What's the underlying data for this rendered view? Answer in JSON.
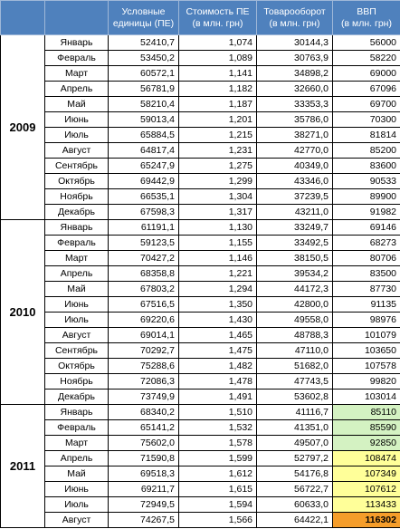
{
  "headers": {
    "units": [
      "Условные",
      "единицы (ПЕ)"
    ],
    "pe_cost": [
      "Стоимость ПЕ",
      "(в млн. грн)"
    ],
    "turnover": [
      "Товарооборот",
      "(в млн. грн)"
    ],
    "gdp": [
      "ВВП",
      "(в млн. грн)"
    ]
  },
  "years": [
    {
      "year": "2009",
      "rows": [
        {
          "month": "Январь",
          "ue": "52410,7",
          "pe": "1,074",
          "to": "30144,3",
          "gdp": "56000",
          "hl": ""
        },
        {
          "month": "Февраль",
          "ue": "53450,2",
          "pe": "1,089",
          "to": "30763,9",
          "gdp": "58220",
          "hl": ""
        },
        {
          "month": "Март",
          "ue": "60572,1",
          "pe": "1,141",
          "to": "34898,2",
          "gdp": "69000",
          "hl": ""
        },
        {
          "month": "Апрель",
          "ue": "56781,9",
          "pe": "1,182",
          "to": "32660,0",
          "gdp": "67096",
          "hl": ""
        },
        {
          "month": "Май",
          "ue": "58210,4",
          "pe": "1,187",
          "to": "33353,3",
          "gdp": "69700",
          "hl": ""
        },
        {
          "month": "Июнь",
          "ue": "59013,4",
          "pe": "1,201",
          "to": "35786,0",
          "gdp": "70300",
          "hl": ""
        },
        {
          "month": "Июль",
          "ue": "65884,5",
          "pe": "1,215",
          "to": "38271,0",
          "gdp": "81814",
          "hl": ""
        },
        {
          "month": "Август",
          "ue": "64817,4",
          "pe": "1,231",
          "to": "42770,0",
          "gdp": "85200",
          "hl": ""
        },
        {
          "month": "Сентябрь",
          "ue": "65247,9",
          "pe": "1,275",
          "to": "40349,0",
          "gdp": "83600",
          "hl": ""
        },
        {
          "month": "Октябрь",
          "ue": "69442,9",
          "pe": "1,299",
          "to": "43346,0",
          "gdp": "90533",
          "hl": ""
        },
        {
          "month": "Ноябрь",
          "ue": "66535,1",
          "pe": "1,304",
          "to": "37239,5",
          "gdp": "89900",
          "hl": ""
        },
        {
          "month": "Декабрь",
          "ue": "67598,3",
          "pe": "1,317",
          "to": "43211,0",
          "gdp": "91982",
          "hl": ""
        }
      ]
    },
    {
      "year": "2010",
      "rows": [
        {
          "month": "Январь",
          "ue": "61191,1",
          "pe": "1,130",
          "to": "33249,7",
          "gdp": "69146",
          "hl": ""
        },
        {
          "month": "Февраль",
          "ue": "59123,5",
          "pe": "1,155",
          "to": "33492,5",
          "gdp": "68273",
          "hl": ""
        },
        {
          "month": "Март",
          "ue": "70427,2",
          "pe": "1,146",
          "to": "38150,5",
          "gdp": "80706",
          "hl": ""
        },
        {
          "month": "Апрель",
          "ue": "68358,8",
          "pe": "1,221",
          "to": "39534,2",
          "gdp": "83500",
          "hl": ""
        },
        {
          "month": "Май",
          "ue": "67803,2",
          "pe": "1,294",
          "to": "44172,3",
          "gdp": "87730",
          "hl": ""
        },
        {
          "month": "Июнь",
          "ue": "67516,5",
          "pe": "1,350",
          "to": "42800,0",
          "gdp": "91135",
          "hl": ""
        },
        {
          "month": "Июль",
          "ue": "69220,6",
          "pe": "1,430",
          "to": "49558,0",
          "gdp": "98976",
          "hl": ""
        },
        {
          "month": "Август",
          "ue": "69014,1",
          "pe": "1,465",
          "to": "48788,3",
          "gdp": "101079",
          "hl": ""
        },
        {
          "month": "Сентябрь",
          "ue": "70292,7",
          "pe": "1,475",
          "to": "47110,0",
          "gdp": "103650",
          "hl": ""
        },
        {
          "month": "Октябрь",
          "ue": "75288,6",
          "pe": "1,482",
          "to": "51682,0",
          "gdp": "107578",
          "hl": ""
        },
        {
          "month": "Ноябрь",
          "ue": "72086,3",
          "pe": "1,478",
          "to": "47743,5",
          "gdp": "99820",
          "hl": ""
        },
        {
          "month": "Декабрь",
          "ue": "73749,9",
          "pe": "1,491",
          "to": "53602,8",
          "gdp": "103014",
          "hl": ""
        }
      ]
    },
    {
      "year": "2011",
      "rows": [
        {
          "month": "Январь",
          "ue": "68340,2",
          "pe": "1,510",
          "to": "41116,7",
          "gdp": "85110",
          "hl": "light"
        },
        {
          "month": "Февраль",
          "ue": "65141,2",
          "pe": "1,532",
          "to": "41351,0",
          "gdp": "85590",
          "hl": "light"
        },
        {
          "month": "Март",
          "ue": "75602,0",
          "pe": "1,578",
          "to": "49507,0",
          "gdp": "92850",
          "hl": "light"
        },
        {
          "month": "Апрель",
          "ue": "71590,8",
          "pe": "1,599",
          "to": "52797,2",
          "gdp": "108474",
          "hl": "yellow"
        },
        {
          "month": "Май",
          "ue": "69518,3",
          "pe": "1,612",
          "to": "54176,8",
          "gdp": "107349",
          "hl": "yellow"
        },
        {
          "month": "Июнь",
          "ue": "69211,7",
          "pe": "1,615",
          "to": "56722,7",
          "gdp": "107612",
          "hl": "yellow"
        },
        {
          "month": "Июль",
          "ue": "72949,5",
          "pe": "1,594",
          "to": "60633,0",
          "gdp": "113433",
          "hl": "yellow"
        },
        {
          "month": "Август",
          "ue": "74267,5",
          "pe": "1,566",
          "to": "64422,1",
          "gdp": "116302",
          "hl": "orange"
        }
      ]
    }
  ],
  "colors": {
    "header_bg": "#4f81bd",
    "header_text": "#ffffff",
    "gdp_light": "#d4f2c2",
    "gdp_yellow": "#ffff99",
    "gdp_orange": "#f59d2a"
  }
}
